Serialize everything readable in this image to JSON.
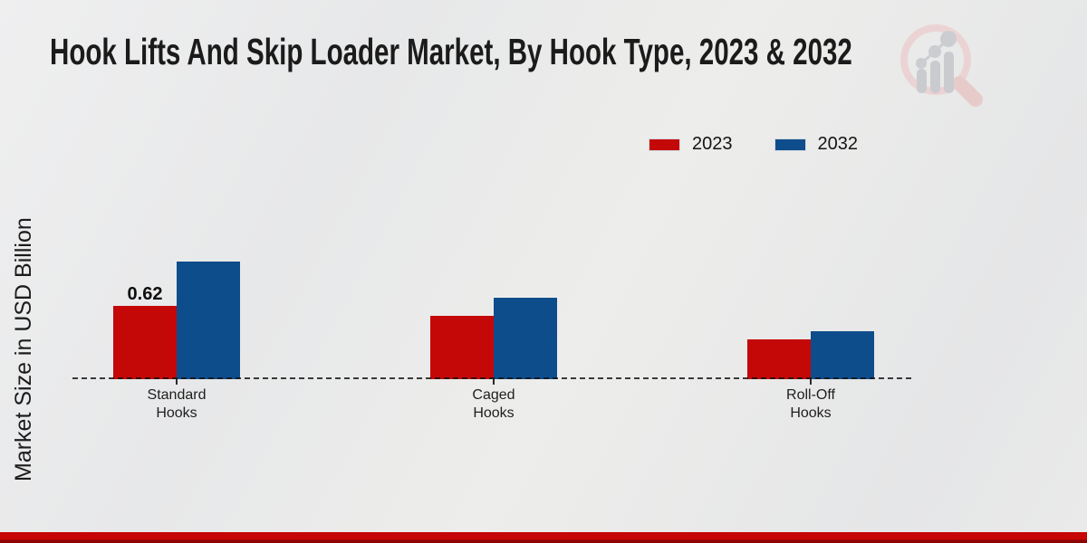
{
  "page": {
    "title": "Hook Lifts And Skip Loader Market, By Hook Type, 2023 & 2032"
  },
  "chart_data": {
    "type": "bar",
    "title": "Hook Lifts And Skip Loader Market, By Hook Type, 2023 & 2032",
    "ylabel": "Market Size in USD Billion",
    "xlabel": "",
    "categories": [
      "Standard Hooks",
      "Caged Hooks",
      "Roll-Off Hooks"
    ],
    "series": [
      {
        "name": "2023",
        "color": "#c40808",
        "values": [
          0.62,
          0.54,
          0.34
        ]
      },
      {
        "name": "2032",
        "color": "#0e4d8c",
        "values": [
          1.0,
          0.69,
          0.41
        ]
      }
    ],
    "bar_labels": [
      {
        "series": "2023",
        "category": "Standard Hooks",
        "text": "0.62"
      }
    ],
    "legend_position": "top-right",
    "baseline_style": "dashed",
    "grid": false,
    "ylim": [
      0,
      1.1
    ]
  },
  "legend": {
    "items": [
      {
        "label": "2023",
        "color": "#c40808"
      },
      {
        "label": "2032",
        "color": "#0e4d8c"
      }
    ]
  },
  "footer": {
    "band_color": "#c60606",
    "band_edge_color": "#8e0404"
  }
}
